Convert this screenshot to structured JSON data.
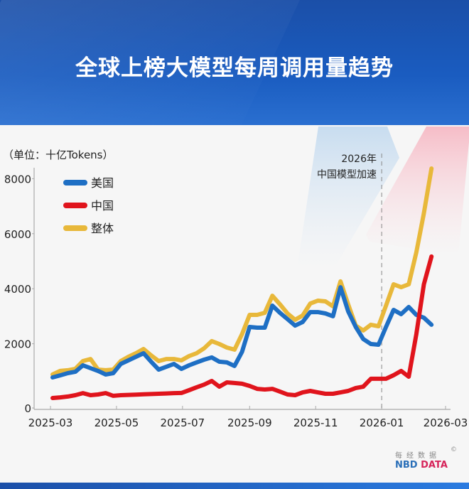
{
  "title": "全球上榜大模型每周调用量趋势",
  "logo": {
    "cn": "每经数据",
    "en_a": "NBD",
    "en_b": "DATA",
    "mark": "©"
  },
  "chart_data": {
    "type": "line",
    "title": "全球上榜大模型每周调用量趋势",
    "unit_label": "（单位：十亿Tokens）",
    "ylim": [
      0,
      8400
    ],
    "yticks": [
      0,
      2000,
      4000,
      6000,
      8000
    ],
    "xticks": [
      "2025-03",
      "2025-05",
      "2025-07",
      "2025-09",
      "2025-11",
      "2026-01",
      "2026-03"
    ],
    "grid": false,
    "legend_placement": "top-left",
    "annotation": {
      "x": "2026-01-01",
      "lines": [
        "2026年",
        "中国模型加速"
      ]
    },
    "x": [
      "2025-03-03",
      "2025-03-10",
      "2025-03-17",
      "2025-03-24",
      "2025-03-31",
      "2025-04-07",
      "2025-04-14",
      "2025-04-21",
      "2025-04-28",
      "2025-05-05",
      "2025-05-12",
      "2025-05-19",
      "2025-05-26",
      "2025-06-02",
      "2025-06-09",
      "2025-06-16",
      "2025-06-23",
      "2025-06-30",
      "2025-07-07",
      "2025-07-14",
      "2025-07-21",
      "2025-07-28",
      "2025-08-04",
      "2025-08-11",
      "2025-08-18",
      "2025-08-25",
      "2025-09-01",
      "2025-09-08",
      "2025-09-15",
      "2025-09-22",
      "2025-09-29",
      "2025-10-06",
      "2025-10-13",
      "2025-10-20",
      "2025-10-27",
      "2025-11-03",
      "2025-11-10",
      "2025-11-17",
      "2025-11-24",
      "2025-12-01",
      "2025-12-08",
      "2025-12-15",
      "2025-12-22",
      "2025-12-29",
      "2026-01-05",
      "2026-01-12",
      "2026-01-19",
      "2026-01-26",
      "2026-02-02",
      "2026-02-09",
      "2026-02-16"
    ],
    "series": [
      {
        "name": "美国",
        "color": "#1e6fc4",
        "values": [
          775,
          850,
          930,
          980,
          1215,
          1110,
          1010,
          880,
          930,
          1265,
          1395,
          1525,
          1655,
          1345,
          1060,
          1160,
          1265,
          1085,
          1215,
          1320,
          1420,
          1500,
          1345,
          1320,
          1190,
          1705,
          2610,
          2585,
          2585,
          3385,
          3125,
          2895,
          2660,
          2790,
          3150,
          3150,
          3100,
          3000,
          4055,
          3180,
          2610,
          2170,
          1990,
          1965,
          2610,
          3230,
          3075,
          3335,
          3050,
          2945,
          2690
        ]
      },
      {
        "name": "中国",
        "color": "#e0141c",
        "values": [
          25,
          50,
          80,
          130,
          205,
          130,
          155,
          205,
          105,
          130,
          140,
          150,
          160,
          170,
          180,
          190,
          205,
          210,
          310,
          415,
          515,
          645,
          440,
          595,
          570,
          545,
          465,
          360,
          335,
          360,
          260,
          155,
          130,
          230,
          285,
          230,
          180,
          180,
          230,
          285,
          390,
          440,
          725,
          725,
          725,
          855,
          1010,
          800,
          2350,
          4160,
          5170
        ]
      },
      {
        "name": "整体",
        "color": "#e8b83a",
        "values": [
          880,
          1010,
          1035,
          1085,
          1370,
          1445,
          1060,
          1035,
          1060,
          1370,
          1525,
          1655,
          1810,
          1575,
          1370,
          1445,
          1445,
          1395,
          1550,
          1655,
          1835,
          2095,
          1990,
          1860,
          1785,
          2350,
          3050,
          3050,
          3125,
          3745,
          3435,
          3100,
          2870,
          3025,
          3460,
          3565,
          3540,
          3360,
          4265,
          3435,
          2660,
          2480,
          2690,
          2635,
          3385,
          4160,
          4055,
          4160,
          5325,
          6745,
          8370
        ]
      }
    ]
  }
}
